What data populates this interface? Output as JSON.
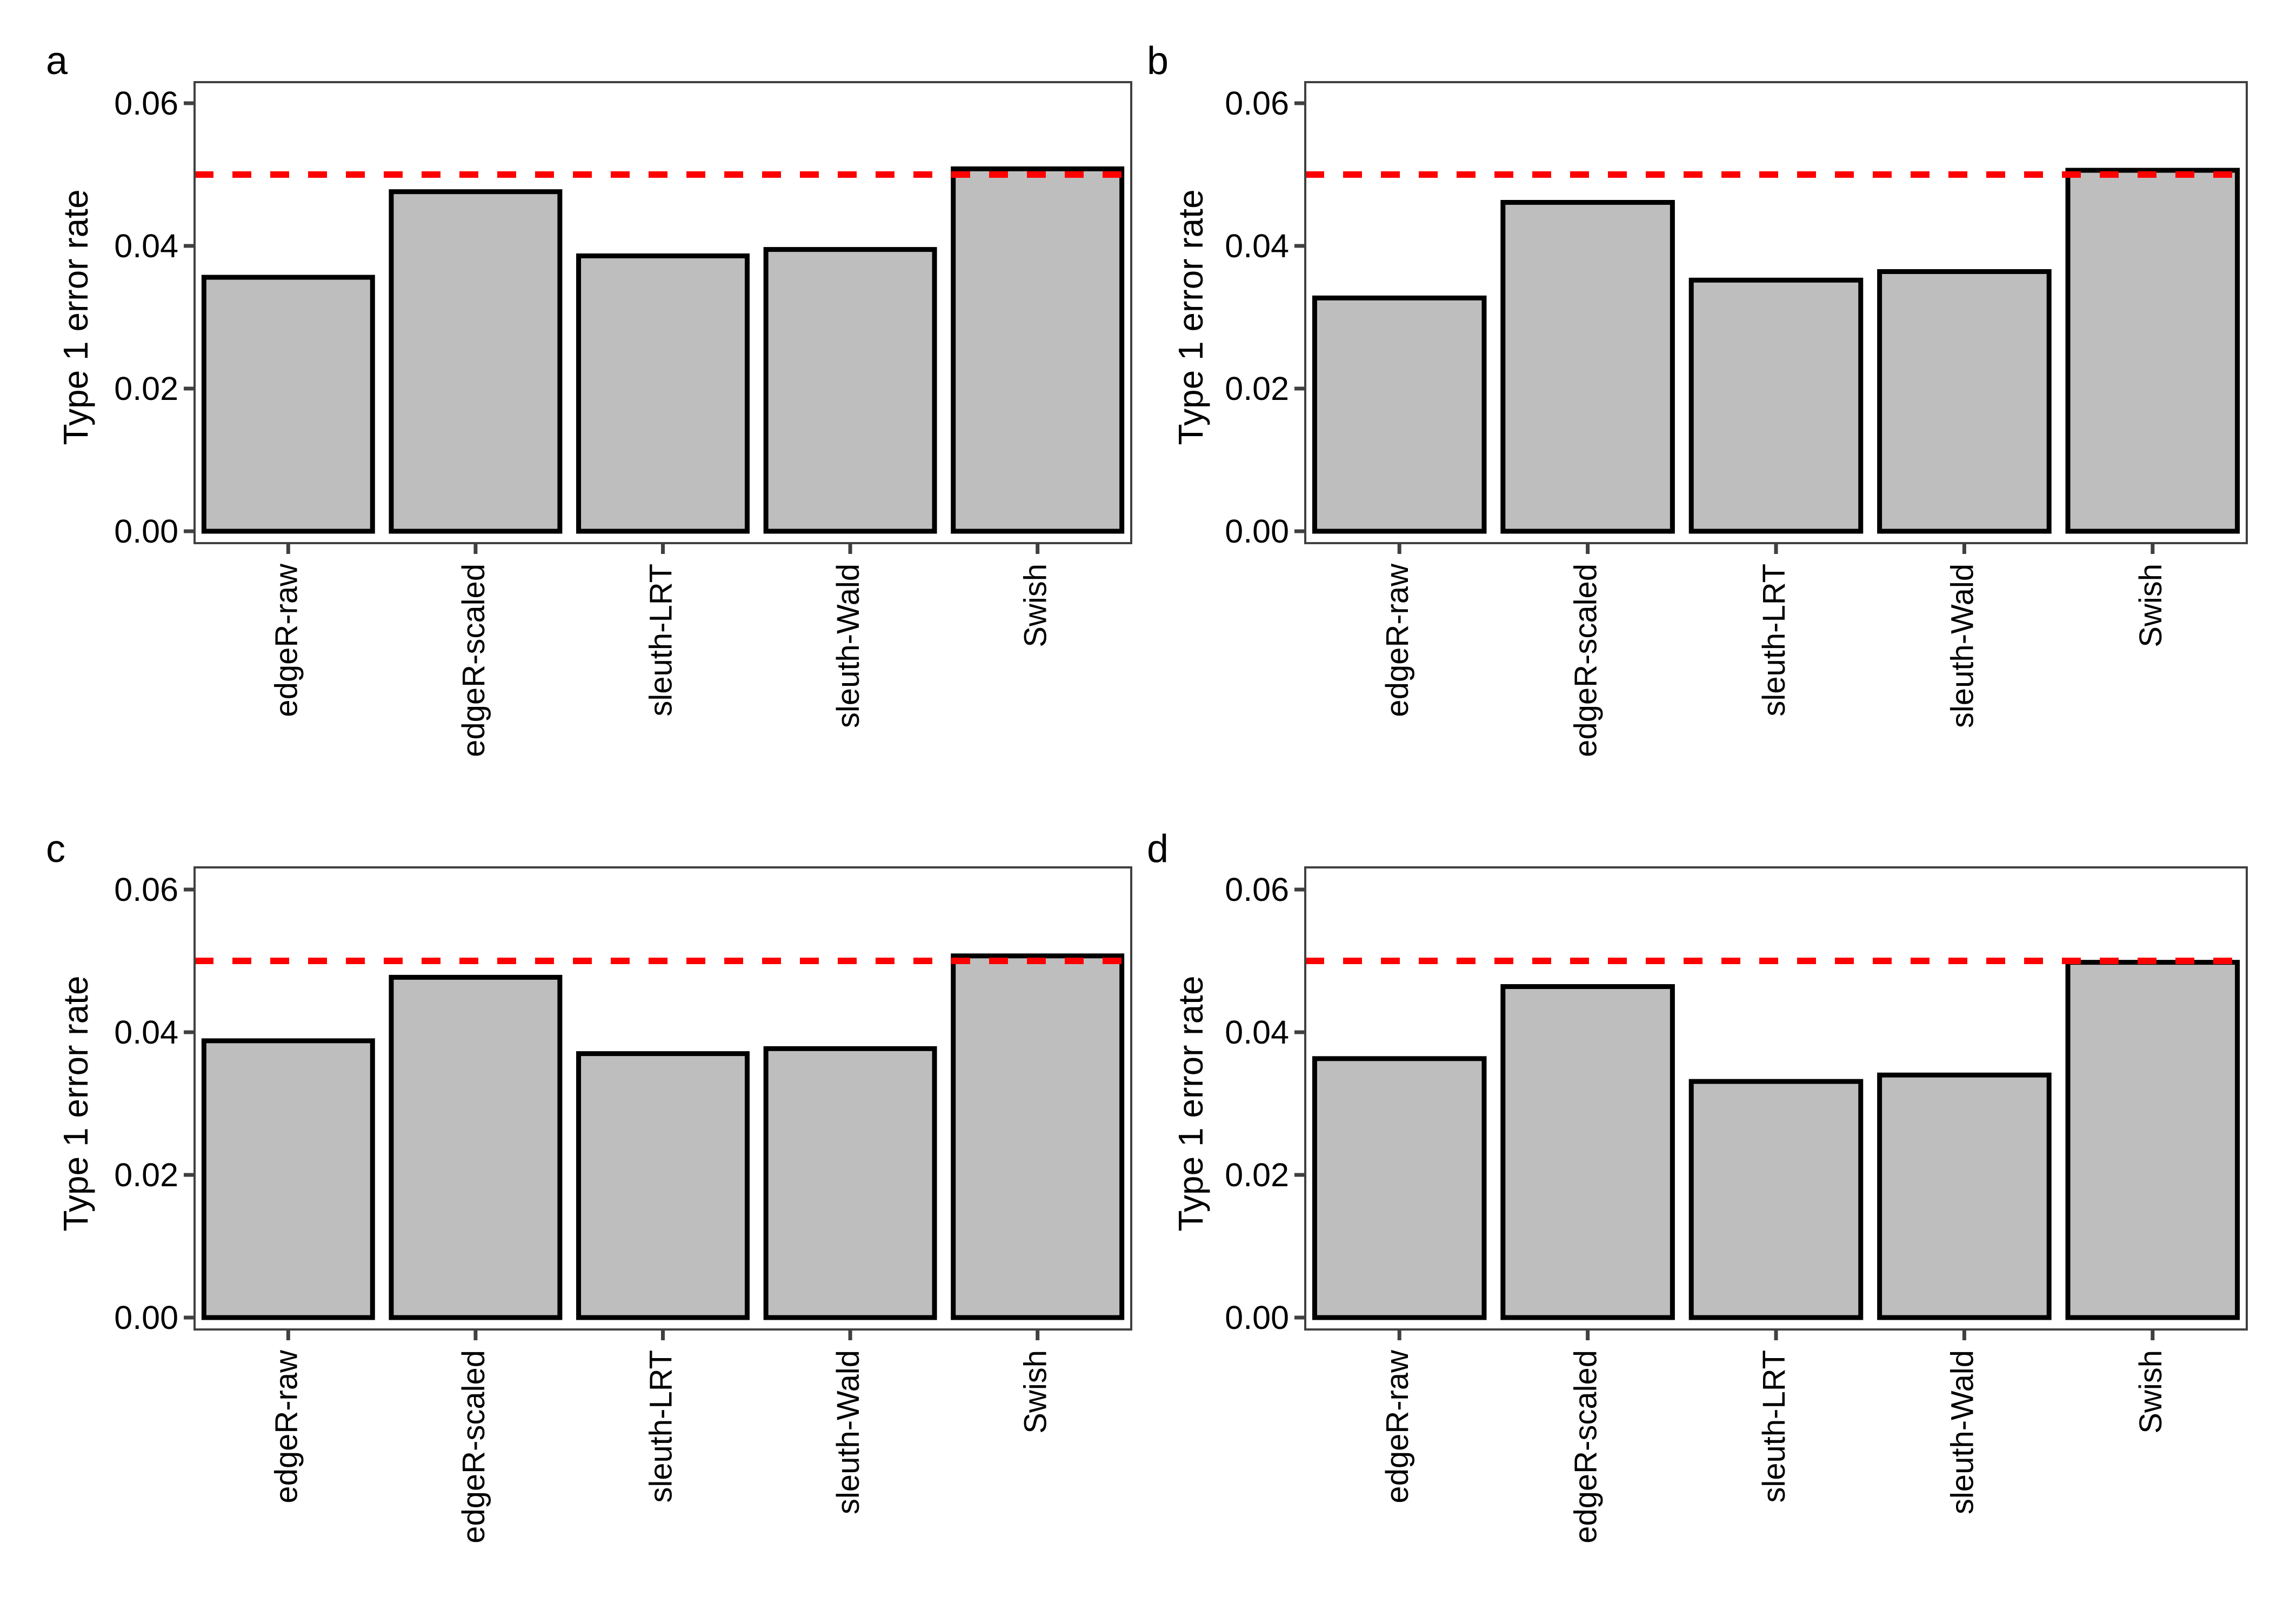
{
  "figure": {
    "description": "Four-panel bar chart figure of Type 1 error rate by method",
    "panel_letters": [
      "a",
      "b",
      "c",
      "d"
    ],
    "colors": {
      "bar_fill": "#BEBEBE",
      "bar_stroke": "#000000",
      "ref_line": "#FF0000",
      "panel_border": "#404040",
      "tick": "#404040",
      "text": "#000000",
      "background": "#FFFFFF"
    }
  },
  "chart_data": [
    {
      "type": "bar",
      "panel": "a",
      "title": "",
      "xlabel": "",
      "ylabel": "Type 1 error rate",
      "categories": [
        "edgeR-raw",
        "edgeR-scaled",
        "sleuth-LRT",
        "sleuth-Wald",
        "Swish"
      ],
      "values": [
        0.0356,
        0.0476,
        0.0386,
        0.0395,
        0.0508
      ],
      "ref_line": {
        "value": 0.05,
        "color": "#FF0000",
        "style": "dashed"
      },
      "ytick_labels": [
        "0.00",
        "0.02",
        "0.04",
        "0.06"
      ],
      "ytick_values": [
        0,
        0.02,
        0.04,
        0.06
      ],
      "ylim": [
        0,
        0.063
      ],
      "grid": "off",
      "legend": "none"
    },
    {
      "type": "bar",
      "panel": "b",
      "title": "",
      "xlabel": "",
      "ylabel": "Type 1 error rate",
      "categories": [
        "edgeR-raw",
        "edgeR-scaled",
        "sleuth-LRT",
        "sleuth-Wald",
        "Swish"
      ],
      "values": [
        0.0327,
        0.0461,
        0.0352,
        0.0364,
        0.0506
      ],
      "ref_line": {
        "value": 0.05,
        "color": "#FF0000",
        "style": "dashed"
      },
      "ytick_labels": [
        "0.00",
        "0.02",
        "0.04",
        "0.06"
      ],
      "ytick_values": [
        0,
        0.02,
        0.04,
        0.06
      ],
      "ylim": [
        0,
        0.063
      ],
      "grid": "off",
      "legend": "none"
    },
    {
      "type": "bar",
      "panel": "c",
      "title": "",
      "xlabel": "",
      "ylabel": "Type 1 error rate",
      "categories": [
        "edgeR-raw",
        "edgeR-scaled",
        "sleuth-LRT",
        "sleuth-Wald",
        "Swish"
      ],
      "values": [
        0.0388,
        0.0477,
        0.037,
        0.0377,
        0.0507
      ],
      "ref_line": {
        "value": 0.05,
        "color": "#FF0000",
        "style": "dashed"
      },
      "ytick_labels": [
        "0.00",
        "0.02",
        "0.04",
        "0.06"
      ],
      "ytick_values": [
        0,
        0.02,
        0.04,
        0.06
      ],
      "ylim": [
        0,
        0.063
      ],
      "grid": "off",
      "legend": "none"
    },
    {
      "type": "bar",
      "panel": "d",
      "title": "",
      "xlabel": "",
      "ylabel": "Type 1 error rate",
      "categories": [
        "edgeR-raw",
        "edgeR-scaled",
        "sleuth-LRT",
        "sleuth-Wald",
        "Swish"
      ],
      "values": [
        0.0363,
        0.0464,
        0.0331,
        0.034,
        0.0498
      ],
      "ref_line": {
        "value": 0.05,
        "color": "#FF0000",
        "style": "dashed"
      },
      "ytick_labels": [
        "0.00",
        "0.02",
        "0.04",
        "0.06"
      ],
      "ytick_values": [
        0,
        0.02,
        0.04,
        0.06
      ],
      "ylim": [
        0,
        0.063
      ],
      "grid": "off",
      "legend": "none"
    }
  ]
}
